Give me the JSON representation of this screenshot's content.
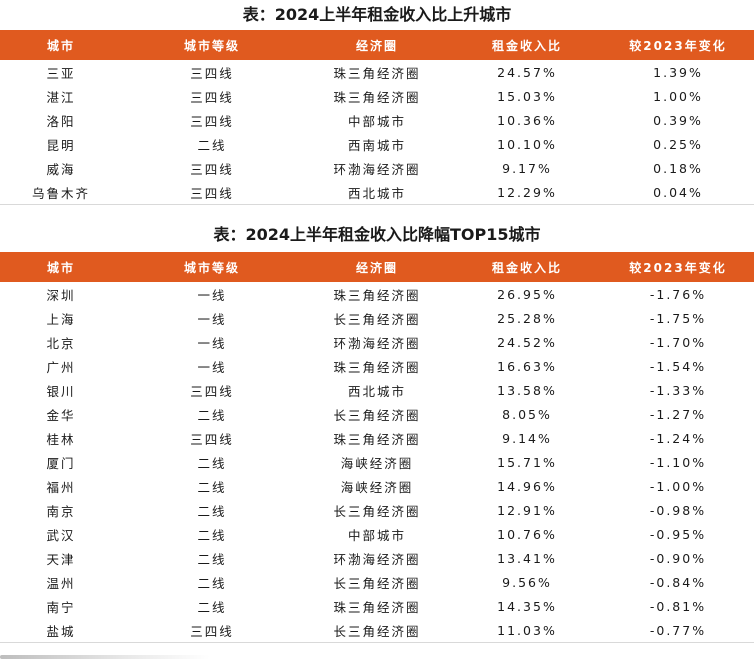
{
  "table1": {
    "caption": "表：2024上半年租金收入比上升城市",
    "headers": [
      "城市",
      "城市等级",
      "经济圈",
      "租金收入比",
      "较2023年变化"
    ],
    "rows": [
      [
        "三亚",
        "三四线",
        "珠三角经济圈",
        "24.57%",
        "1.39%"
      ],
      [
        "湛江",
        "三四线",
        "珠三角经济圈",
        "15.03%",
        "1.00%"
      ],
      [
        "洛阳",
        "三四线",
        "中部城市",
        "10.36%",
        "0.39%"
      ],
      [
        "昆明",
        "二线",
        "西南城市",
        "10.10%",
        "0.25%"
      ],
      [
        "威海",
        "三四线",
        "环渤海经济圈",
        "9.17%",
        "0.18%"
      ],
      [
        "乌鲁木齐",
        "三四线",
        "西北城市",
        "12.29%",
        "0.04%"
      ]
    ]
  },
  "table2": {
    "caption": "表：2024上半年租金收入比降幅TOP15城市",
    "headers": [
      "城市",
      "城市等级",
      "经济圈",
      "租金收入比",
      "较2023年变化"
    ],
    "rows": [
      [
        "深圳",
        "一线",
        "珠三角经济圈",
        "26.95%",
        "-1.76%"
      ],
      [
        "上海",
        "一线",
        "长三角经济圈",
        "25.28%",
        "-1.75%"
      ],
      [
        "北京",
        "一线",
        "环渤海经济圈",
        "24.52%",
        "-1.70%"
      ],
      [
        "广州",
        "一线",
        "珠三角经济圈",
        "16.63%",
        "-1.54%"
      ],
      [
        "银川",
        "三四线",
        "西北城市",
        "13.58%",
        "-1.33%"
      ],
      [
        "金华",
        "二线",
        "长三角经济圈",
        "8.05%",
        "-1.27%"
      ],
      [
        "桂林",
        "三四线",
        "珠三角经济圈",
        "9.14%",
        "-1.24%"
      ],
      [
        "厦门",
        "二线",
        "海峡经济圈",
        "15.71%",
        "-1.10%"
      ],
      [
        "福州",
        "二线",
        "海峡经济圈",
        "14.96%",
        "-1.00%"
      ],
      [
        "南京",
        "二线",
        "长三角经济圈",
        "12.91%",
        "-0.98%"
      ],
      [
        "武汉",
        "二线",
        "中部城市",
        "10.76%",
        "-0.95%"
      ],
      [
        "天津",
        "二线",
        "环渤海经济圈",
        "13.41%",
        "-0.90%"
      ],
      [
        "温州",
        "二线",
        "长三角经济圈",
        "9.56%",
        "-0.84%"
      ],
      [
        "南宁",
        "二线",
        "珠三角经济圈",
        "14.35%",
        "-0.81%"
      ],
      [
        "盐城",
        "三四线",
        "长三角经济圈",
        "11.03%",
        "-0.77%"
      ]
    ]
  },
  "colors": {
    "header_bg": "#e05a1f",
    "header_text": "#ffffff"
  }
}
